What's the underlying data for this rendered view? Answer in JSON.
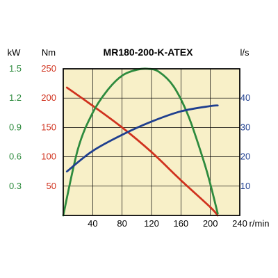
{
  "chart_data": {
    "type": "line",
    "title": "MR180-200-K-ATEX",
    "background_color": "#f8f0c8",
    "grid": true,
    "x_axis": {
      "unit": "r/min",
      "range": [
        0,
        240
      ],
      "ticks": [
        40,
        80,
        120,
        160,
        200,
        240
      ],
      "color": "#000000"
    },
    "y_axes": {
      "power": {
        "unit": "kW",
        "range": [
          0,
          1.5
        ],
        "ticks": [
          "0.3",
          "0.6",
          "0.9",
          "1.2",
          "1.5"
        ],
        "color": "#2e8b3e"
      },
      "torque": {
        "unit": "Nm",
        "range": [
          0,
          250
        ],
        "ticks": [
          "50",
          "100",
          "150",
          "200",
          "250"
        ],
        "color": "#d0321e"
      },
      "flow": {
        "unit": "l/s",
        "range": [
          0,
          50
        ],
        "ticks": [
          "10",
          "20",
          "30",
          "40"
        ],
        "color": "#1f3f8f"
      }
    },
    "series": [
      {
        "axis": "torque",
        "color": "#d0321e",
        "x": [
          5,
          40,
          80,
          120,
          160,
          200,
          210
        ],
        "y": [
          218,
          187,
          150,
          108,
          60,
          14,
          0
        ]
      },
      {
        "axis": "power",
        "color": "#2e8b3e",
        "x": [
          0,
          20,
          40,
          60,
          80,
          100,
          115,
          130,
          150,
          170,
          190,
          200,
          210
        ],
        "y": [
          0,
          0.68,
          1.05,
          1.28,
          1.43,
          1.49,
          1.5,
          1.47,
          1.32,
          1.02,
          0.58,
          0.32,
          0.02
        ]
      },
      {
        "axis": "flow",
        "color": "#1f3f8f",
        "x": [
          5,
          40,
          80,
          120,
          160,
          200,
          210
        ],
        "y": [
          15,
          22,
          27.5,
          32,
          35.5,
          37.3,
          37.5
        ]
      }
    ]
  }
}
